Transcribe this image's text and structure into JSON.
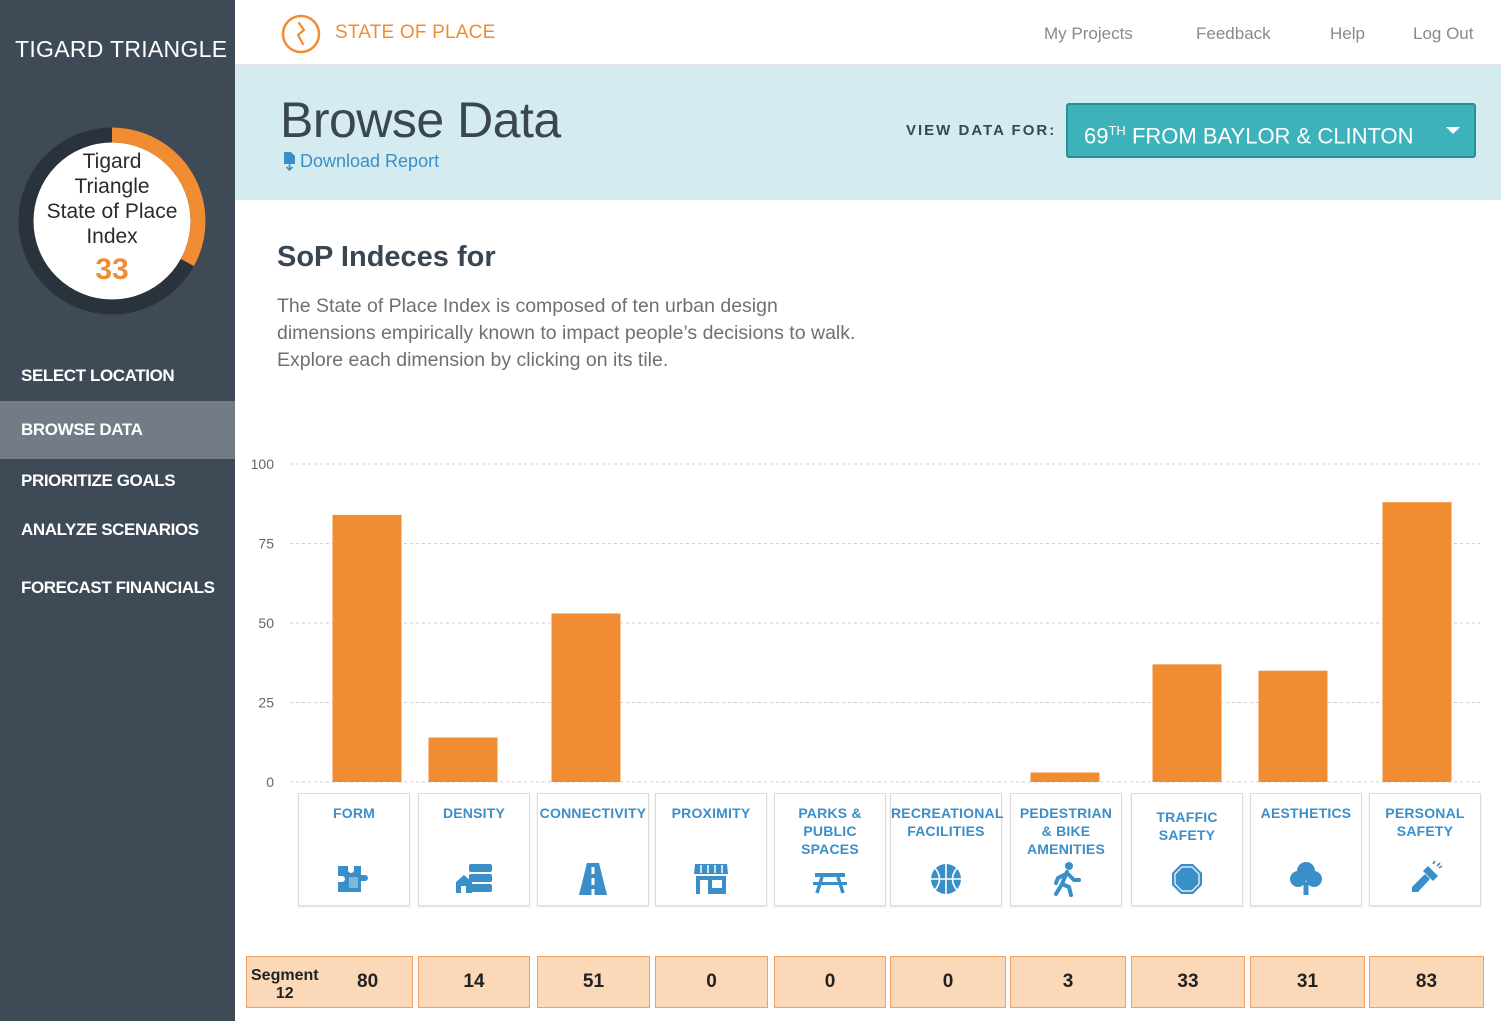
{
  "sidebar": {
    "project_name": "TIGARD TRIANGLE",
    "index_card": {
      "lines": [
        "Tigard",
        "Triangle",
        "State of Place",
        "Index"
      ],
      "value": "33",
      "score_fraction": 0.33
    },
    "nav": [
      {
        "label": "SELECT LOCATION"
      },
      {
        "label": "BROWSE DATA",
        "active": true
      },
      {
        "label": "PRIORITIZE GOALS"
      },
      {
        "label": "ANALYZE SCENARIOS"
      },
      {
        "label": "FORECAST FINANCIALS"
      }
    ]
  },
  "topbar": {
    "brand": "STATE OF PLACE",
    "links": [
      "My Projects",
      "Feedback",
      "Help",
      "Log Out"
    ]
  },
  "header": {
    "title": "Browse Data",
    "download_label": "Download Report",
    "view_label": "VIEW DATA FOR:",
    "selected_location_prefix": "69",
    "selected_location_sup": "TH",
    "selected_location_rest": " FROM BAYLOR & CLINTON"
  },
  "intro": {
    "title": "SoP Indeces for",
    "text": "The State of Place Index is composed of ten urban design dimensions empirically known to impact people’s decisions to walk. Explore each dimension by clicking on its tile."
  },
  "colors": {
    "accent": "#f08d33",
    "sidebar": "#3f4a57",
    "link": "#3a8fc9",
    "header_band": "#d4ecef",
    "select": "#3db2bb"
  },
  "chart_data": {
    "type": "bar",
    "categories": [
      "FORM",
      "DENSITY",
      "CONNECTIVITY",
      "PROXIMITY",
      "PARKS & PUBLIC SPACES",
      "RECREATIONAL FACILITIES",
      "PEDESTRIAN & BIKE AMENITIES",
      "TRAFFIC SAFETY",
      "AESTHETICS",
      "PERSONAL SAFETY"
    ],
    "values": [
      84,
      14,
      53,
      0,
      0,
      0,
      3,
      37,
      35,
      88
    ],
    "ylim": [
      0,
      100
    ],
    "yticks": [
      "0",
      "25",
      "50",
      "75",
      "100"
    ],
    "grid": true,
    "bar_color": "#f08d33"
  },
  "tiles": [
    {
      "lines": [
        "FORM"
      ],
      "icon": "puzzle-icon"
    },
    {
      "lines": [
        "DENSITY"
      ],
      "icon": "house-stack-icon"
    },
    {
      "lines": [
        "CONNECTIVITY"
      ],
      "icon": "road-icon"
    },
    {
      "lines": [
        "PROXIMITY"
      ],
      "icon": "storefront-icon"
    },
    {
      "lines": [
        "PARKS &",
        "PUBLIC",
        "SPACES"
      ],
      "icon": "picnic-table-icon"
    },
    {
      "lines": [
        "RECREATIONAL",
        "FACILITIES"
      ],
      "icon": "basketball-icon"
    },
    {
      "lines": [
        "PEDESTRIAN",
        "& BIKE",
        "AMENITIES"
      ],
      "icon": "walker-icon"
    },
    {
      "lines": [
        "TRAFFIC",
        "SAFETY"
      ],
      "icon": "stop-sign-icon"
    },
    {
      "lines": [
        "AESTHETICS"
      ],
      "icon": "tree-icon"
    },
    {
      "lines": [
        "PERSONAL",
        "SAFETY"
      ],
      "icon": "flashlight-icon"
    }
  ],
  "segment_row": {
    "label_line1": "Segment",
    "label_line2": "12",
    "values": [
      "80",
      "14",
      "51",
      "0",
      "0",
      "0",
      "3",
      "33",
      "31",
      "83"
    ]
  }
}
